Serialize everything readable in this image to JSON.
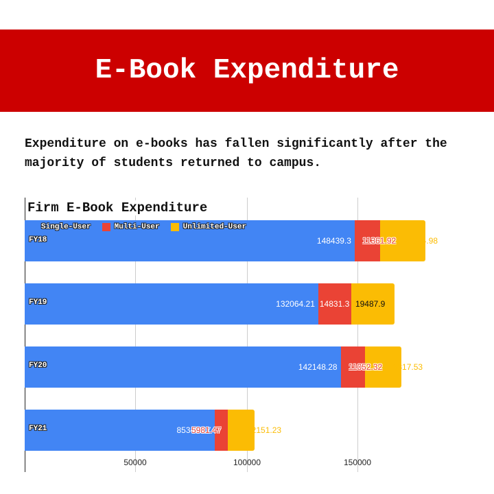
{
  "banner": {
    "title": "E-Book Expenditure",
    "color": "#cc0000"
  },
  "subtitle": "Expenditure on e-books has fallen significantly after the majority of students returned to campus.",
  "chart": {
    "title": "Firm E-Book Expenditure",
    "legend": [
      {
        "label": "Single-User",
        "color": "#4285f4"
      },
      {
        "label": "Multi-User",
        "color": "#ea4335"
      },
      {
        "label": "Unlimited-User",
        "color": "#fbbc04"
      }
    ],
    "ticks": [
      "50000",
      "100000",
      "150000"
    ],
    "rows": [
      {
        "label": "FY18",
        "single": "148439.3",
        "multi": "11361.92",
        "unlimited": "20344.98"
      },
      {
        "label": "FY19",
        "single": "132064.21",
        "multi": "14831.3",
        "unlimited": "19487.9"
      },
      {
        "label": "FY20",
        "single": "142148.28",
        "multi": "11052.32",
        "unlimited": "16317.53"
      },
      {
        "label": "FY21",
        "single": "85346.17",
        "multi": "5981.47",
        "unlimited": "12151.23"
      }
    ]
  },
  "chart_data": {
    "type": "bar",
    "orientation": "horizontal",
    "stacked": true,
    "title": "Firm E-Book Expenditure",
    "categories": [
      "FY18",
      "FY19",
      "FY20",
      "FY21"
    ],
    "series": [
      {
        "name": "Single-User",
        "color": "#4285f4",
        "values": [
          148439.3,
          132064.21,
          142148.28,
          85346.17
        ]
      },
      {
        "name": "Multi-User",
        "color": "#ea4335",
        "values": [
          11361.92,
          14831.3,
          11052.32,
          5981.47
        ]
      },
      {
        "name": "Unlimited-User",
        "color": "#fbbc04",
        "values": [
          20344.98,
          19487.9,
          16317.53,
          12151.23
        ]
      }
    ],
    "xlabel": "",
    "ylabel": "",
    "xticks": [
      50000,
      100000,
      150000
    ],
    "xlim": [
      0,
      210000
    ],
    "grid": true,
    "legend_position": "top"
  }
}
